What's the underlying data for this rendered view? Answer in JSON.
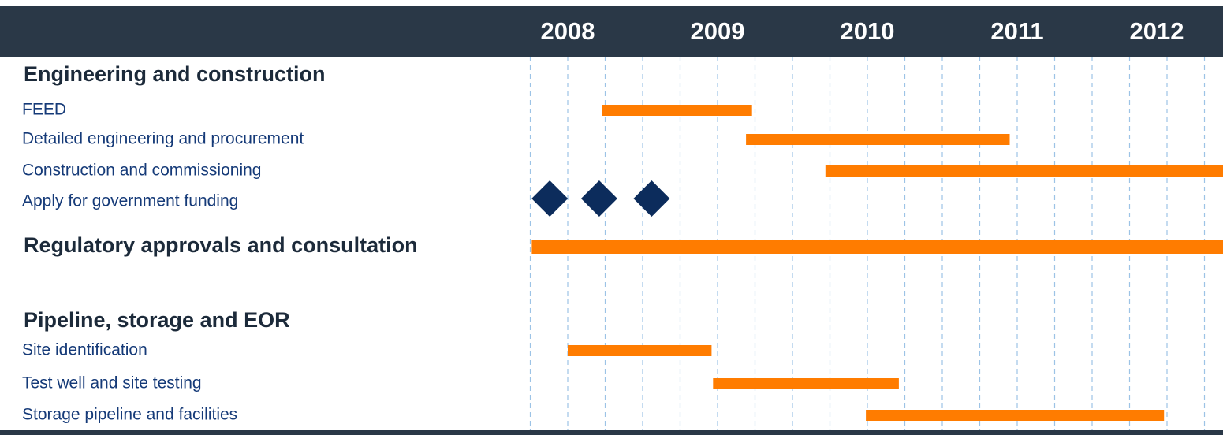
{
  "chart_data": {
    "type": "gantt",
    "xlim": [
      2007.75,
      2012.38
    ],
    "xticks": [
      2008,
      2009,
      2010,
      2011,
      2012
    ],
    "xgrid": [
      2007.75,
      2008,
      2008.25,
      2008.5,
      2008.75,
      2009,
      2009.25,
      2009.5,
      2009.75,
      2010,
      2010.25,
      2010.5,
      2010.75,
      2011,
      2011.25,
      2011.5,
      2011.75,
      2012,
      2012.25
    ],
    "bar_color": "#ff7c00",
    "milestone_color": "#0c2c5c",
    "rows": [
      {
        "name": "Engineering and construction",
        "style": "group"
      },
      {
        "name": "FEED",
        "style": "task",
        "start": 2008.23,
        "end": 2009.23
      },
      {
        "name": "Detailed engineering and procurement",
        "style": "task",
        "start": 2009.19,
        "end": 2010.95
      },
      {
        "name": "Construction and commissioning",
        "style": "task",
        "start": 2009.72,
        "end": 2012.38
      },
      {
        "name": "Apply for government funding",
        "style": "task",
        "milestones": [
          2007.88,
          2008.21,
          2008.56
        ]
      },
      {
        "name": "Regulatory approvals and consultation",
        "style": "group",
        "start": 2007.76,
        "end": 2012.38
      },
      {
        "name": "Pipeline, storage and EOR",
        "style": "group"
      },
      {
        "name": "Site identification",
        "style": "task",
        "start": 2008.0,
        "end": 2008.96
      },
      {
        "name": "Test well and site testing",
        "style": "task",
        "start": 2008.97,
        "end": 2010.21
      },
      {
        "name": "Storage pipeline and facilities",
        "style": "task",
        "start": 2009.99,
        "end": 2011.98
      }
    ]
  }
}
